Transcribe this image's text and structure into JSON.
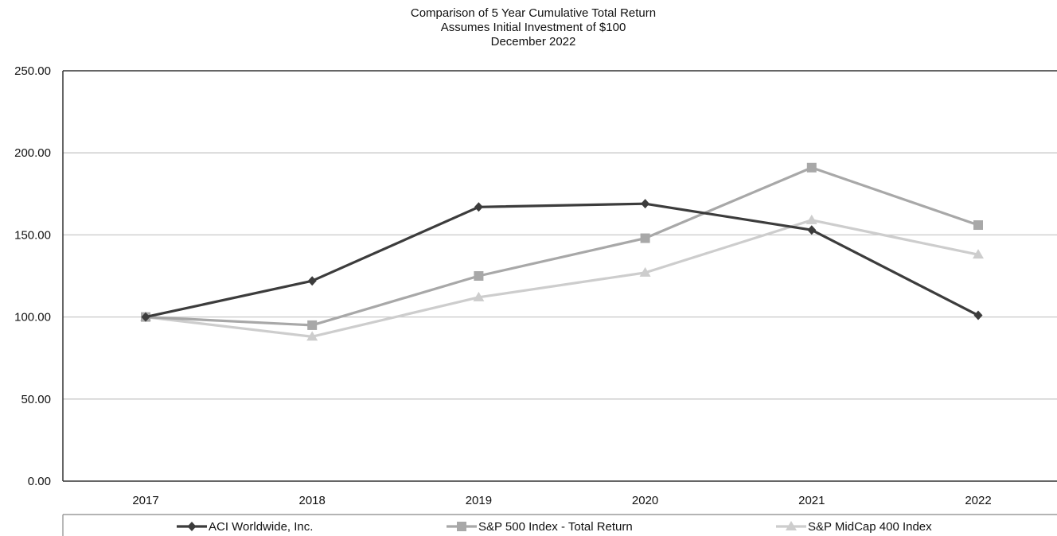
{
  "chart_data": {
    "type": "line",
    "title": "Comparison of 5 Year Cumulative Total Return",
    "subtitle": "Assumes Initial Investment of $100",
    "subtitle2": "December 2022",
    "xlabel": "",
    "ylabel": "",
    "categories": [
      "2017",
      "2018",
      "2019",
      "2020",
      "2021",
      "2022"
    ],
    "ylim": [
      0,
      250
    ],
    "yticks": [
      "0.00",
      "50.00",
      "100.00",
      "150.00",
      "200.00",
      "250.00"
    ],
    "grid": true,
    "legend_position": "bottom",
    "series": [
      {
        "name": "ACI Worldwide, Inc.",
        "values": [
          100,
          122,
          167,
          169,
          153,
          101
        ],
        "color": "#3c3c3c",
        "marker": "diamond"
      },
      {
        "name": "S&P 500 Index - Total Return",
        "values": [
          100,
          95,
          125,
          148,
          191,
          156
        ],
        "color": "#a8a8a8",
        "marker": "square"
      },
      {
        "name": "S&P MidCap 400 Index",
        "values": [
          100,
          88,
          112,
          127,
          159,
          138
        ],
        "color": "#cdcdcd",
        "marker": "triangle"
      }
    ]
  }
}
